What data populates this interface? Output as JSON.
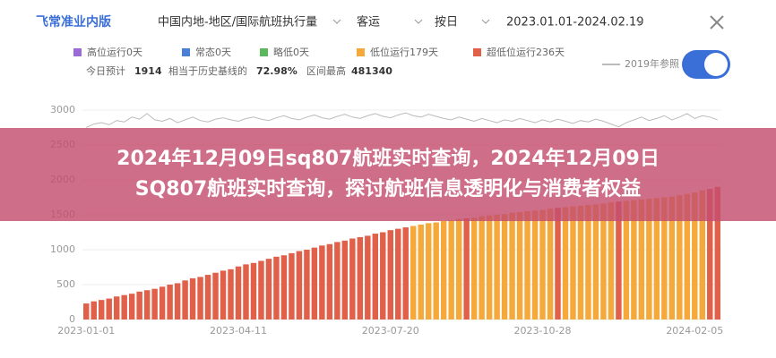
{
  "header": {
    "logo": "飞常准业内版",
    "filters": [
      "中国内地-地区/国际航班执行量",
      "客运",
      "按日",
      "2023.01.01-2024.02.19"
    ]
  },
  "stats": {
    "today_label": "今日预计",
    "today": "1914",
    "baseline_label": "相当于历史基线的",
    "baseline": "72.98%",
    "max_label": "区间最高",
    "max": "481340"
  },
  "banner": {
    "lines": [
      "2024年12月09日sq807航班实时查询，2024年12月09日",
      "SQ807航班实时查询，探讨航班信息透明化与消费者权益"
    ]
  },
  "chart_data": {
    "type": "bar",
    "legend": [
      {
        "name": "高位运行0天",
        "color": "#9b6cd6"
      },
      {
        "name": "常态0天",
        "color": "#4a7fd8"
      },
      {
        "name": "略低0天",
        "color": "#5cb85c"
      },
      {
        "name": "低位运行179天",
        "color": "#f5a93a"
      },
      {
        "name": "超低位运行236天",
        "color": "#e0604a"
      }
    ],
    "toggle_on": true,
    "categories": [
      "2023-01-01",
      null,
      null,
      null,
      null,
      null,
      null,
      null,
      null,
      null,
      null,
      null,
      null,
      null,
      null,
      null,
      null,
      null,
      null,
      null,
      "2023-04-11",
      null,
      null,
      null,
      null,
      null,
      null,
      null,
      null,
      null,
      null,
      null,
      null,
      null,
      null,
      null,
      null,
      null,
      null,
      null,
      "2023-07-20",
      null,
      null,
      null,
      null,
      null,
      null,
      null,
      null,
      null,
      null,
      null,
      null,
      null,
      null,
      null,
      null,
      null,
      null,
      null,
      "2023-10-28",
      null,
      null,
      null,
      null,
      null,
      null,
      null,
      null,
      null,
      null,
      null,
      null,
      null,
      null,
      null,
      null,
      null,
      null,
      null,
      "2024-02-05",
      null,
      null,
      null
    ],
    "series": [
      {
        "color": "#e0604a",
        "values": [
          230,
          260,
          280,
          300,
          330,
          350,
          370,
          400,
          420,
          440,
          470,
          500,
          520,
          560,
          590,
          610,
          640,
          670,
          700,
          720,
          760,
          790,
          810,
          840,
          870,
          900,
          920,
          950,
          980,
          1000,
          1030,
          1060,
          1080,
          1110,
          1130,
          1160,
          1180,
          1200,
          1230,
          1250,
          1280,
          1300,
          1320,
          null,
          null,
          null,
          null,
          null,
          null,
          null,
          1450,
          null,
          null,
          null,
          null,
          null,
          null,
          null,
          null,
          null,
          null,
          null,
          1600,
          null,
          null,
          null,
          null,
          null,
          null,
          null,
          1690,
          null,
          null,
          null,
          null,
          null,
          null,
          null,
          null,
          null,
          null,
          null,
          1870,
          1900
        ]
      },
      {
        "color": "#f5a93a",
        "values": [
          null,
          null,
          null,
          null,
          null,
          null,
          null,
          null,
          null,
          null,
          null,
          null,
          null,
          null,
          null,
          null,
          null,
          null,
          null,
          null,
          null,
          null,
          null,
          null,
          null,
          null,
          null,
          null,
          null,
          null,
          null,
          null,
          null,
          null,
          null,
          null,
          null,
          null,
          null,
          null,
          null,
          null,
          null,
          1340,
          1360,
          1380,
          1390,
          1410,
          1420,
          1440,
          null,
          1460,
          1480,
          1490,
          1500,
          1510,
          1530,
          1540,
          1550,
          1560,
          1570,
          1590,
          null,
          1610,
          1620,
          1630,
          1640,
          1650,
          1660,
          1680,
          null,
          1700,
          1710,
          1720,
          1730,
          1740,
          1750,
          1760,
          1780,
          1800,
          1820,
          1850,
          null,
          null
        ]
      },
      {
        "name": "2019年参照",
        "type": "line",
        "color": "#bbbbbb",
        "values": [
          2750,
          2800,
          2820,
          2790,
          2850,
          2830,
          2900,
          2870,
          2950,
          2860,
          2840,
          2880,
          2820,
          2860,
          2900,
          2850,
          2830,
          2870,
          2890,
          2860,
          2840,
          2880,
          2900,
          2870,
          2850,
          2890,
          2920,
          2880,
          2860,
          2900,
          2930,
          2890,
          2870,
          2910,
          2940,
          2900,
          2880,
          2920,
          2950,
          2910,
          2890,
          2930,
          2960,
          2920,
          2900,
          2940,
          2910,
          2880,
          2860,
          2900,
          2870,
          2840,
          2880,
          2850,
          2820,
          2860,
          2840,
          2880,
          2850,
          2820,
          2860,
          2830,
          2870,
          2840,
          2810,
          2850,
          2830,
          2870,
          2840,
          2800,
          2760,
          2820,
          2860,
          2900,
          2850,
          2880,
          2920,
          2860,
          2900,
          2950,
          2880,
          2920,
          2900,
          2860
        ]
      }
    ],
    "ylim": [
      0,
      3000
    ],
    "yticks": [
      0,
      500,
      1000,
      1500,
      2000,
      2500,
      3000
    ],
    "grid": true
  }
}
